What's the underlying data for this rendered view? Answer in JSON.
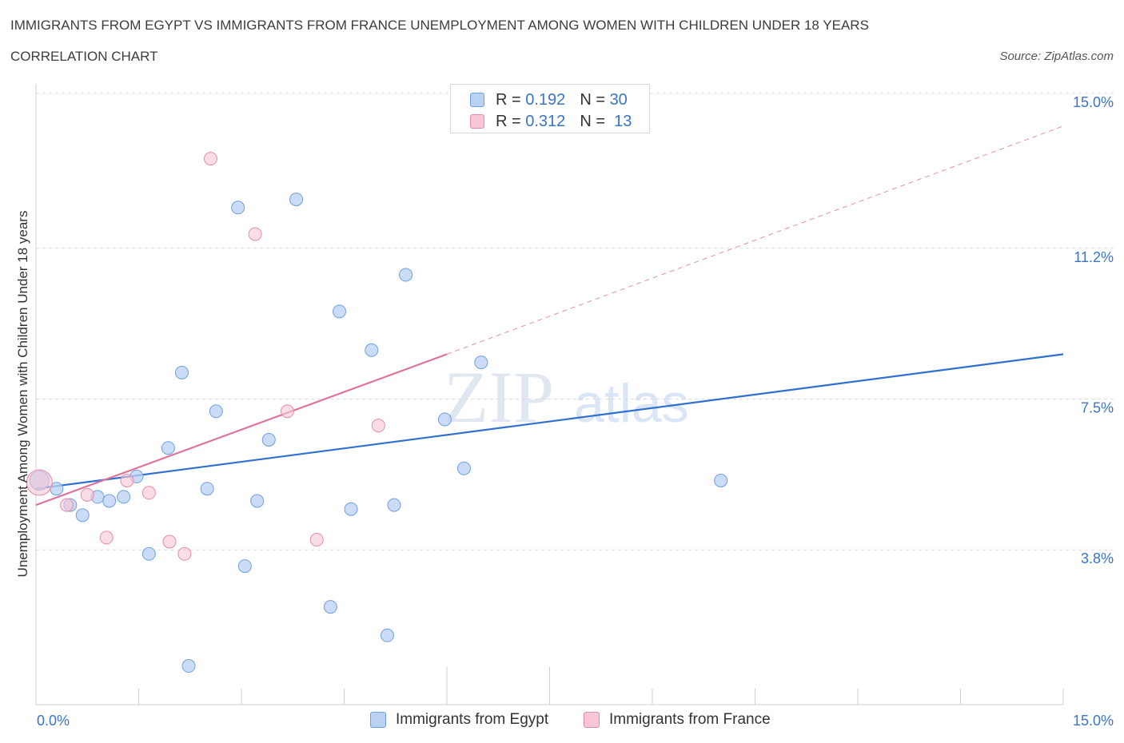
{
  "header": {
    "title": "IMMIGRANTS FROM EGYPT VS IMMIGRANTS FROM FRANCE UNEMPLOYMENT AMONG WOMEN WITH CHILDREN UNDER 18 YEARS",
    "subtitle": "CORRELATION CHART",
    "source": "Source: ZipAtlas.com"
  },
  "legend_top": {
    "egypt": {
      "r_label": "R =",
      "r_value": "0.192",
      "n_label": "N =",
      "n_value": "30"
    },
    "france": {
      "r_label": "R =",
      "r_value": "0.312",
      "n_label": "N =",
      "n_value": "13"
    }
  },
  "colors": {
    "egypt_fill": "#b9d1f3",
    "egypt_stroke": "#6f9ee0",
    "egypt_line": "#2f6fd1",
    "france_fill": "#f8c6d6",
    "france_stroke": "#e58ba8",
    "france_line": "#e0709a",
    "grid": "#dcdcdc",
    "axis_text": "#3a75c4",
    "watermark": "#c8d3e3"
  },
  "watermark": {
    "zip": "ZIP",
    "atlas": "atlas"
  },
  "chart_data": {
    "type": "scatter",
    "title": "IMMIGRANTS FROM EGYPT VS IMMIGRANTS FROM FRANCE UNEMPLOYMENT AMONG WOMEN WITH CHILDREN UNDER 18 YEARS",
    "xlabel": "",
    "ylabel": "Unemployment Among Women with Children Under 18 years",
    "xlim": [
      0,
      15
    ],
    "ylim": [
      0,
      15
    ],
    "x_tick_labels": [
      "0.0%",
      "15.0%"
    ],
    "y_ticks": [
      3.8,
      7.5,
      11.2,
      15.0
    ],
    "y_tick_labels": [
      "3.8%",
      "7.5%",
      "11.2%",
      "15.0%"
    ],
    "grid": true,
    "legend_position": "bottom-center",
    "series": [
      {
        "name": "Immigrants from Egypt",
        "r": 0.192,
        "n": 30,
        "points": [
          [
            0.05,
            5.5
          ],
          [
            0.3,
            5.3
          ],
          [
            0.5,
            4.9
          ],
          [
            0.68,
            4.65
          ],
          [
            0.9,
            5.1
          ],
          [
            1.07,
            5.0
          ],
          [
            1.28,
            5.1
          ],
          [
            1.47,
            5.6
          ],
          [
            1.65,
            3.7
          ],
          [
            1.93,
            6.3
          ],
          [
            2.13,
            8.15
          ],
          [
            2.23,
            0.95
          ],
          [
            2.5,
            5.3
          ],
          [
            2.63,
            7.2
          ],
          [
            2.95,
            12.2
          ],
          [
            3.05,
            3.4
          ],
          [
            3.23,
            5.0
          ],
          [
            3.4,
            6.5
          ],
          [
            3.8,
            12.4
          ],
          [
            4.3,
            2.4
          ],
          [
            4.43,
            9.65
          ],
          [
            4.6,
            4.8
          ],
          [
            4.9,
            8.7
          ],
          [
            5.13,
            1.7
          ],
          [
            5.23,
            4.9
          ],
          [
            5.4,
            10.55
          ],
          [
            5.97,
            7.0
          ],
          [
            6.25,
            5.8
          ],
          [
            6.5,
            8.4
          ],
          [
            10.0,
            5.5
          ]
        ],
        "trend": {
          "x": [
            0,
            15
          ],
          "y": [
            5.3,
            8.6
          ]
        }
      },
      {
        "name": "Immigrants from France",
        "r": 0.312,
        "n": 13,
        "points": [
          [
            0.05,
            5.45
          ],
          [
            0.45,
            4.9
          ],
          [
            0.75,
            5.15
          ],
          [
            1.03,
            4.1
          ],
          [
            1.33,
            5.5
          ],
          [
            1.65,
            5.2
          ],
          [
            1.95,
            4.0
          ],
          [
            2.17,
            3.7
          ],
          [
            2.55,
            13.4
          ],
          [
            3.2,
            11.55
          ],
          [
            3.67,
            7.2
          ],
          [
            4.1,
            4.05
          ],
          [
            5.0,
            6.85
          ]
        ],
        "trend": {
          "x": [
            0,
            6
          ],
          "y": [
            4.9,
            8.6
          ]
        },
        "trend_extension": {
          "x": [
            6,
            15
          ],
          "y": [
            8.6,
            14.2
          ]
        }
      }
    ]
  },
  "legend_bottom": {
    "egypt": "Immigrants from Egypt",
    "france": "Immigrants from France"
  }
}
